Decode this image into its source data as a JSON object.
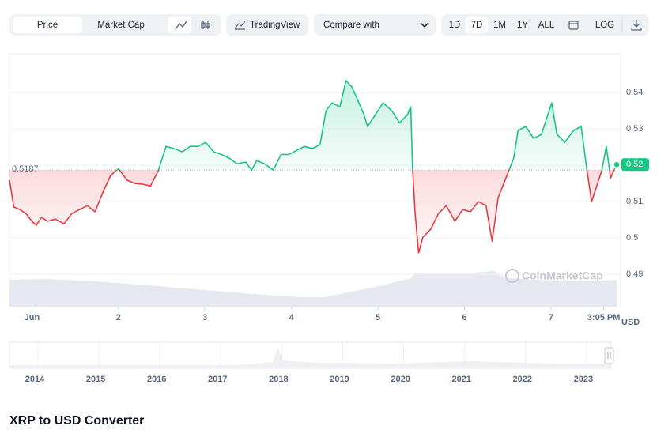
{
  "toolbar": {
    "chart_types": [
      "Price",
      "Market Cap"
    ],
    "tradingview": "TradingView",
    "compare": "Compare with",
    "ranges": [
      "1D",
      "7D",
      "1M",
      "1Y",
      "ALL"
    ],
    "log": "LOG"
  },
  "chart_data": {
    "type": "line",
    "x": [
      -0.26,
      -0.21,
      -0.14,
      -0.07,
      0,
      0.05,
      0.11,
      0.18,
      0.27,
      0.37,
      0.46,
      0.55,
      0.64,
      0.73,
      0.82,
      0.91,
      1.0,
      1.1,
      1.19,
      1.28,
      1.37,
      1.46,
      1.55,
      1.64,
      1.74,
      1.83,
      1.92,
      2.01,
      2.1,
      2.19,
      2.28,
      2.37,
      2.47,
      2.54,
      2.6,
      2.69,
      2.79,
      2.88,
      2.97,
      3.06,
      3.15,
      3.24,
      3.33,
      3.4,
      3.47,
      3.56,
      3.63,
      3.7,
      3.76,
      3.84,
      3.88,
      3.97,
      4.06,
      4.16,
      4.25,
      4.34,
      4.38,
      4.4,
      4.43,
      4.47,
      4.52,
      4.61,
      4.7,
      4.79,
      4.89,
      4.98,
      5.07,
      5.16,
      5.25,
      5.32,
      5.39,
      5.48,
      5.57,
      5.62,
      5.71,
      5.8,
      5.89,
      6.01,
      6.07,
      6.16,
      6.26,
      6.35,
      6.41,
      6.47,
      6.53,
      6.59,
      6.64,
      6.69,
      6.76
    ],
    "values": [
      0.5159,
      0.5085,
      0.5078,
      0.5067,
      0.5046,
      0.5035,
      0.5057,
      0.5046,
      0.5052,
      0.5039,
      0.5067,
      0.5078,
      0.5089,
      0.5072,
      0.5126,
      0.5172,
      0.5191,
      0.5159,
      0.515,
      0.5148,
      0.5143,
      0.5185,
      0.5252,
      0.5246,
      0.5237,
      0.5252,
      0.5252,
      0.5263,
      0.5237,
      0.523,
      0.522,
      0.5204,
      0.5209,
      0.5187,
      0.5213,
      0.5204,
      0.5187,
      0.523,
      0.523,
      0.5241,
      0.5252,
      0.5246,
      0.5257,
      0.535,
      0.5372,
      0.5361,
      0.5433,
      0.5415,
      0.5383,
      0.5339,
      0.5307,
      0.5339,
      0.5372,
      0.535,
      0.5317,
      0.5339,
      0.5361,
      0.5193,
      0.5067,
      0.4959,
      0.5002,
      0.5024,
      0.5067,
      0.5089,
      0.5046,
      0.5078,
      0.5072,
      0.51,
      0.5089,
      0.4991,
      0.5111,
      0.5165,
      0.522,
      0.5296,
      0.5307,
      0.5274,
      0.5285,
      0.5372,
      0.5285,
      0.5263,
      0.5296,
      0.5307,
      0.5198,
      0.51,
      0.5143,
      0.5187,
      0.5252,
      0.5165,
      0.5202
    ],
    "reference": 0.5187,
    "last_label": "0.52",
    "up_color": "#16c784",
    "down_color": "#ea3943",
    "xlim": [
      -0.26,
      6.76
    ],
    "xticks": [
      {
        "value": 0,
        "label": "Jun"
      },
      {
        "value": 1,
        "label": "2"
      },
      {
        "value": 2,
        "label": "3"
      },
      {
        "value": 3,
        "label": "4"
      },
      {
        "value": 4,
        "label": "5"
      },
      {
        "value": 5,
        "label": "6"
      },
      {
        "value": 6,
        "label": "7"
      },
      {
        "value": 6.61,
        "label": "3:05 PM"
      }
    ],
    "ylim": [
      0.4811,
      0.5507
    ],
    "yticks": [
      0.49,
      0.5,
      0.51,
      0.52,
      0.53,
      0.54
    ],
    "y_unit": "USD",
    "watermark": "CoinMarketCap",
    "grid": true
  },
  "navigator": {
    "years": [
      2014,
      2015,
      2016,
      2017,
      2018,
      2019,
      2020,
      2021,
      2022,
      2023
    ]
  },
  "converter_title": "XRP to USD Converter"
}
